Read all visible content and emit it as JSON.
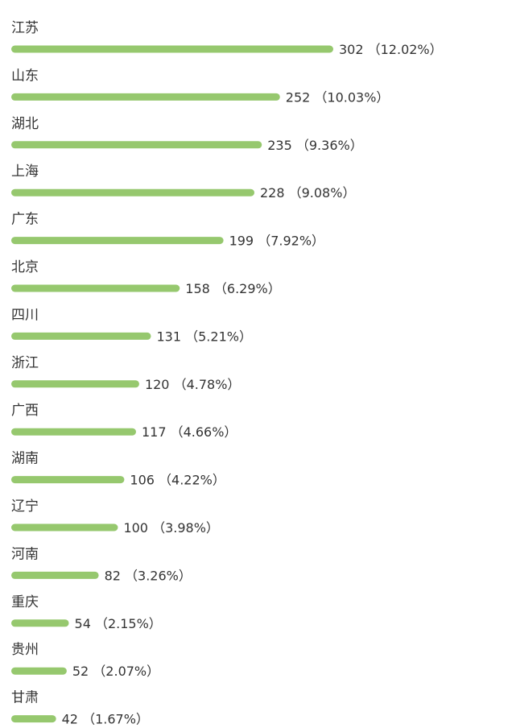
{
  "chart_data": {
    "type": "bar",
    "orientation": "horizontal",
    "categories": [
      "江苏",
      "山东",
      "湖北",
      "上海",
      "广东",
      "北京",
      "四川",
      "浙江",
      "广西",
      "湖南",
      "辽宁",
      "河南",
      "重庆",
      "贵州",
      "甘肃"
    ],
    "values": [
      302,
      252,
      235,
      228,
      199,
      158,
      131,
      120,
      117,
      106,
      100,
      82,
      54,
      52,
      42
    ],
    "data_labels": [
      "302 （12.02%）",
      "252 （10.03%）",
      "235 （9.36%）",
      "228 （9.08%）",
      "199 （7.92%）",
      "158 （6.29%）",
      "131 （5.21%）",
      "120 （4.78%）",
      "117 （4.66%）",
      "106 （4.22%）",
      "100 （3.98%）",
      "82 （3.26%）",
      "54 （2.15%）",
      "52 （2.07%）",
      "42 （1.67%）"
    ],
    "bar_color": "#96c86e",
    "grid": false,
    "legend": "none"
  }
}
